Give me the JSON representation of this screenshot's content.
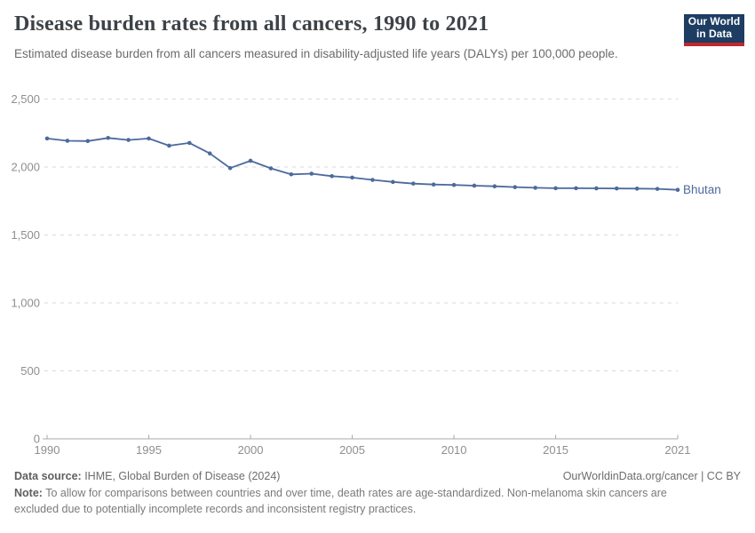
{
  "header": {
    "title": "Disease burden rates from all cancers, 1990 to 2021",
    "subtitle": "Estimated disease burden from all cancers measured in disability-adjusted life years (DALYs) per 100,000 people.",
    "logo": {
      "line1": "Our World",
      "line2": "in Data",
      "bg_color": "#1d3d63",
      "stripe_color": "#c0282e"
    }
  },
  "chart_data": {
    "type": "line",
    "title": "Disease burden rates from all cancers, 1990 to 2021",
    "xlabel": "",
    "ylabel": "DALYs per 100,000 people",
    "xlim": [
      1990,
      2021
    ],
    "ylim": [
      0,
      2500
    ],
    "grid": "horizontal-dashed",
    "legend_position": "end-of-line-label",
    "x": [
      1990,
      1991,
      1992,
      1993,
      1994,
      1995,
      1996,
      1997,
      1998,
      1999,
      2000,
      2001,
      2002,
      2003,
      2004,
      2005,
      2006,
      2007,
      2008,
      2009,
      2010,
      2011,
      2012,
      2013,
      2014,
      2015,
      2016,
      2017,
      2018,
      2019,
      2020,
      2021
    ],
    "series": [
      {
        "name": "Bhutan",
        "color": "#4c6a9c",
        "values": [
          2210,
          2193,
          2191,
          2214,
          2199,
          2210,
          2157,
          2177,
          2100,
          1992,
          2046,
          1990,
          1946,
          1951,
          1933,
          1922,
          1905,
          1890,
          1878,
          1871,
          1868,
          1863,
          1858,
          1852,
          1847,
          1844,
          1844,
          1843,
          1842,
          1841,
          1839,
          1832
        ]
      }
    ],
    "yticks": [
      {
        "value": 0,
        "label": "0"
      },
      {
        "value": 500,
        "label": "500"
      },
      {
        "value": 1000,
        "label": "1,000"
      },
      {
        "value": 1500,
        "label": "1,500"
      },
      {
        "value": 2000,
        "label": "2,000"
      },
      {
        "value": 2500,
        "label": "2,500"
      }
    ],
    "xticks": [
      {
        "value": 1990,
        "label": "1990"
      },
      {
        "value": 1995,
        "label": "1995"
      },
      {
        "value": 2000,
        "label": "2000"
      },
      {
        "value": 2005,
        "label": "2005"
      },
      {
        "value": 2010,
        "label": "2010"
      },
      {
        "value": 2015,
        "label": "2015"
      },
      {
        "value": 2021,
        "label": "2021"
      }
    ],
    "axis_color": "#a8a8a8",
    "gridline_color": "#dadada",
    "tick_label_color": "#8f8f8f"
  },
  "footer": {
    "source_label": "Data source:",
    "source_text": " IHME, Global Burden of Disease (2024)",
    "attribution": "OurWorldinData.org/cancer | CC BY",
    "note_label": "Note:",
    "note_text": " To allow for comparisons between countries and over time, death rates are age-standardized. Non-melanoma skin cancers are excluded due to potentially incomplete records and inconsistent registry practices."
  }
}
